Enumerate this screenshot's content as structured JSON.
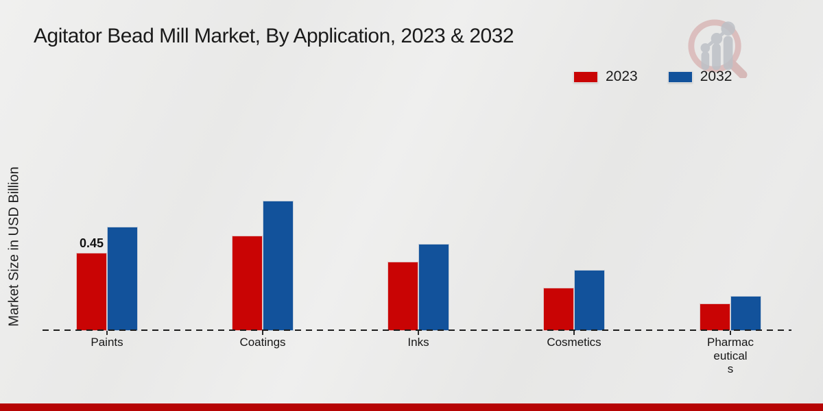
{
  "title": "Agitator Bead Mill Market, By Application, 2023 & 2032",
  "y_axis_label": "Market Size in USD Billion",
  "legend": [
    {
      "label": "2023",
      "color": "#c90404"
    },
    {
      "label": "2032",
      "color": "#12529b"
    }
  ],
  "logo": {
    "icon": "magnifier-bar-chart-logo"
  },
  "footer": {
    "bar_color": "#b60404"
  },
  "chart_data": {
    "type": "bar",
    "title": "Agitator Bead Mill Market, By Application, 2023 & 2032",
    "xlabel": "",
    "ylabel": "Market Size in USD Billion",
    "categories": [
      "Paints",
      "Coatings",
      "Inks",
      "Cosmetics",
      "Pharmaceuticals"
    ],
    "category_label_lines": [
      [
        "Paints"
      ],
      [
        "Coatings"
      ],
      [
        "Inks"
      ],
      [
        "Cosmetics"
      ],
      [
        "Pharmac",
        "eutical",
        "s"
      ]
    ],
    "series": [
      {
        "name": "2023",
        "color": "#c90404",
        "values": [
          0.45,
          0.55,
          0.4,
          0.25,
          0.16
        ]
      },
      {
        "name": "2032",
        "color": "#12529b",
        "values": [
          0.6,
          0.75,
          0.5,
          0.35,
          0.2
        ]
      }
    ],
    "data_labels": [
      {
        "category": "Paints",
        "series": "2023",
        "text": "0.45"
      }
    ],
    "ylim": [
      0,
      0.9
    ],
    "grid": false,
    "baseline_style": "dashed",
    "legend_position": "top-right"
  }
}
